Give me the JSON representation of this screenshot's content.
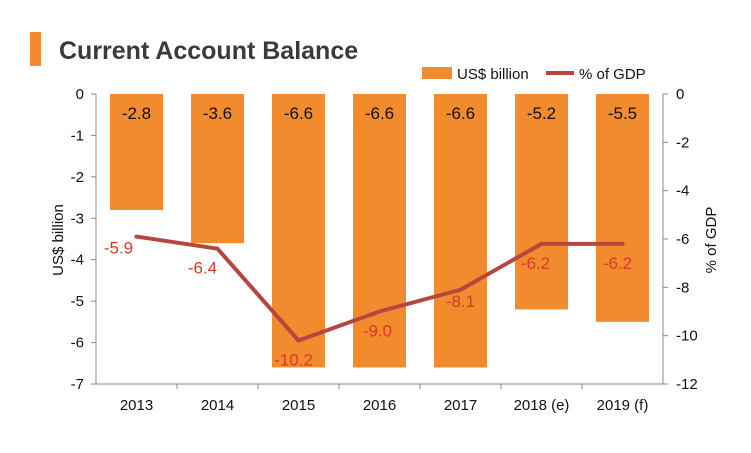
{
  "title": "Current Account Balance",
  "colors": {
    "bar": "#F28A2E",
    "line": "#B5473F",
    "line_label": "#D9392B",
    "title_accent": "#F28A2E",
    "axis": "#888888"
  },
  "chart_data": {
    "type": "bar",
    "title": "Current Account Balance",
    "categories": [
      "2013",
      "2014",
      "2015",
      "2016",
      "2017",
      "2018 (e)",
      "2019 (f)"
    ],
    "series": [
      {
        "name": "US$ billion",
        "type": "bar",
        "axis": "left",
        "values": [
          -2.8,
          -3.6,
          -6.6,
          -6.6,
          -6.6,
          -5.2,
          -5.5
        ],
        "labels": [
          "-2.8",
          "-3.6",
          "-6.6",
          "-6.6",
          "-6.6",
          "-5.2",
          "-5.5"
        ]
      },
      {
        "name": "% of GDP",
        "type": "line",
        "axis": "right",
        "values": [
          -5.9,
          -6.4,
          -10.2,
          -9.0,
          -8.1,
          -6.2,
          -6.2
        ],
        "labels": [
          "-5.9",
          "-6.4",
          "-10.2",
          "-9.0",
          "-8.1",
          "-6.2",
          "-6.2"
        ]
      }
    ],
    "ylabel": "US$ billion",
    "ylim": [
      -7,
      0
    ],
    "yticks": [
      "0",
      "-1",
      "-2",
      "-3",
      "-4",
      "-5",
      "-6",
      "-7"
    ],
    "y2label": "% of GDP",
    "y2lim": [
      -12,
      0
    ],
    "y2ticks": [
      "0",
      "-2",
      "-4",
      "-6",
      "-8",
      "-10",
      "-12"
    ],
    "grid": false,
    "legend": "top-right"
  }
}
